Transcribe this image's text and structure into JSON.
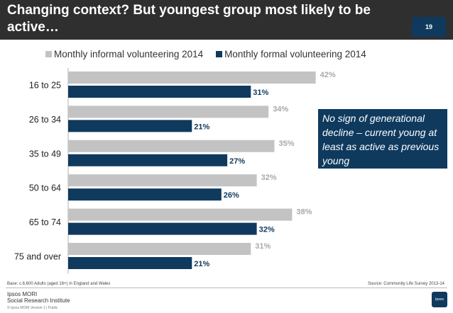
{
  "header": {
    "title": "Changing context?  But youngest group most likely to be active…",
    "slide_number": "19"
  },
  "colors": {
    "header_bg": "#2f2f2f",
    "informal": "#c3c3c3",
    "formal": "#0f3a5e",
    "informal_label": "#a9a9a9",
    "formal_label": "#0f3a5e"
  },
  "chart_data": {
    "type": "bar",
    "orientation": "horizontal",
    "title": "",
    "categories": [
      "16 to 25",
      "26 to 34",
      "35 to 49",
      "50 to 64",
      "65 to 74",
      "75 and over"
    ],
    "series": [
      {
        "name": "Monthly informal volunteering 2014",
        "values": [
          42,
          34,
          35,
          32,
          38,
          31
        ],
        "labels": [
          "42%",
          "34%",
          "35%",
          "32%",
          "38%",
          "31%"
        ]
      },
      {
        "name": "Monthly formal volunteering 2014",
        "values": [
          31,
          21,
          27,
          26,
          32,
          21
        ],
        "labels": [
          "31%",
          "21%",
          "27%",
          "26%",
          "32%",
          "21%"
        ]
      }
    ],
    "xlim": [
      0,
      45
    ],
    "legend_position": "top",
    "grid": false
  },
  "callout": {
    "text": "No sign of generational decline – current young at least as active as previous young"
  },
  "footer": {
    "base_note": "Base: c.6,600 Adults (aged 16+) in England and Wales",
    "source_note": "Source: Community Life Survey 2013-14",
    "logo_line1": "Ipsos MORI",
    "logo_line2": "Social Research Institute",
    "copyright": "© Ipsos MORI    Version 1 | Public",
    "brand": "Ipsos"
  }
}
